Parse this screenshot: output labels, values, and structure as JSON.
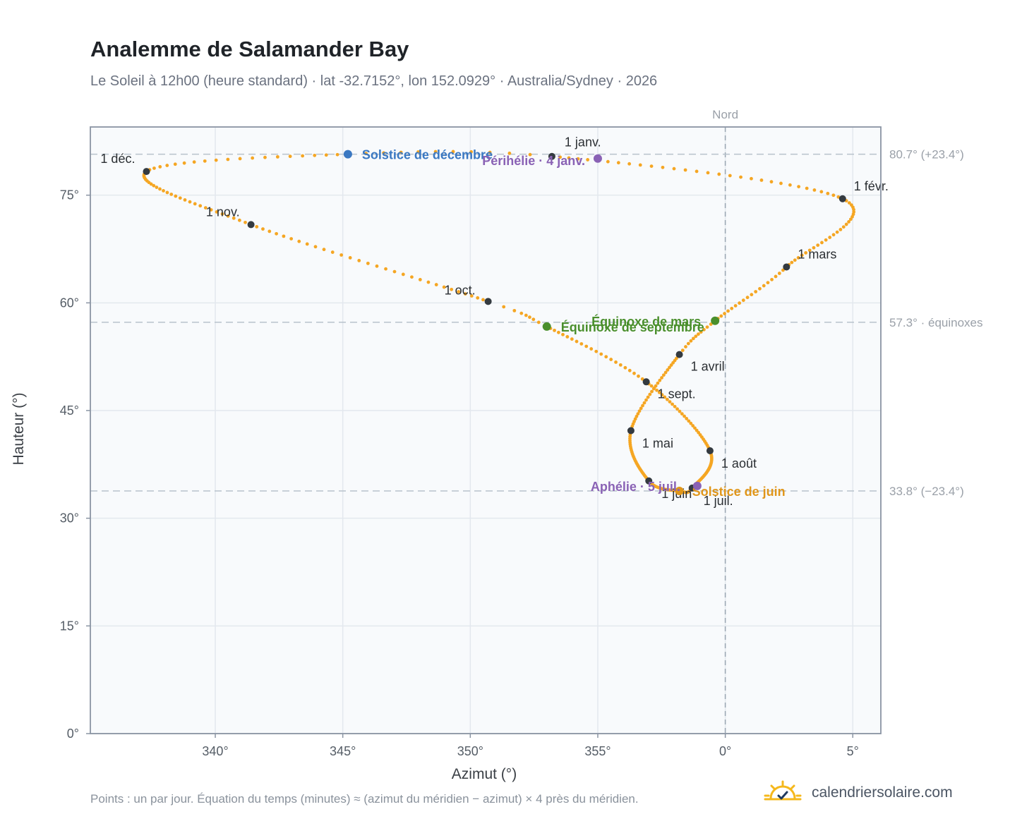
{
  "header": {
    "title": "Analemme de Salamander Bay",
    "subtitle": "Le Soleil à 12h00 (heure standard) · lat -32.7152°, lon 152.0929° · Australia/Sydney · 2026"
  },
  "footer": {
    "note": "Points : un par jour. Équation du temps (minutes) ≈ (azimut du méridien − azimut) × 4 près du méridien.",
    "brand": "calendriersolaire.com",
    "brand_icon": "sun-check-icon"
  },
  "colors": {
    "curve": "#f5a623",
    "month_marker": "#343a40",
    "solstice_december": "#3a78c2",
    "solstice_june": "#e0961a",
    "equinox": "#4a8f2c",
    "apsis": "#8a62b5",
    "reference_line": "#b8c2cc",
    "plot_background": "#f8fafc"
  },
  "chart_data": {
    "type": "scatter",
    "xlabel": "Azimut (°)",
    "ylabel": "Hauteur (°)",
    "x_ticks": [
      "340°",
      "345°",
      "350°",
      "355°",
      "0°",
      "5°"
    ],
    "y_ticks": [
      "0°",
      "15°",
      "30°",
      "45°",
      "60°",
      "75°"
    ],
    "x_note": "azimut relatif au nord (0° = Nord, 340° = −20°)",
    "xlim": [
      -24.9,
      6.1
    ],
    "ylim": [
      0,
      84.5
    ],
    "grid": true,
    "north_line": {
      "azimuth": 0,
      "label": "Nord"
    },
    "reference_lines": [
      {
        "altitude": 80.7,
        "label": "80.7° (+23.4°)"
      },
      {
        "altitude": 57.3,
        "label": "57.3° · équinoxes"
      },
      {
        "altitude": 33.8,
        "label": "33.8° (−23.4°)"
      }
    ],
    "series": [
      {
        "name": "",
        "points_note": "un point par jour",
        "anchors": [
          {
            "day": 1,
            "az": -6.8,
            "alt": 80.4
          },
          {
            "day": 32,
            "az": 4.6,
            "alt": 74.5
          },
          {
            "day": 60,
            "az": 2.4,
            "alt": 65.0
          },
          {
            "day": 79,
            "az": -0.4,
            "alt": 57.5
          },
          {
            "day": 91,
            "az": -1.8,
            "alt": 52.8
          },
          {
            "day": 121,
            "az": -3.7,
            "alt": 42.2
          },
          {
            "day": 152,
            "az": -3.0,
            "alt": 35.2
          },
          {
            "day": 172,
            "az": -1.8,
            "alt": 33.8
          },
          {
            "day": 182,
            "az": -1.3,
            "alt": 34.2
          },
          {
            "day": 213,
            "az": -0.6,
            "alt": 39.4
          },
          {
            "day": 244,
            "az": -3.1,
            "alt": 49.0
          },
          {
            "day": 266,
            "az": -7.0,
            "alt": 56.7
          },
          {
            "day": 274,
            "az": -9.3,
            "alt": 60.2
          },
          {
            "day": 305,
            "az": -18.6,
            "alt": 70.9
          },
          {
            "day": 335,
            "az": -22.7,
            "alt": 78.3
          },
          {
            "day": 355,
            "az": -14.8,
            "alt": 80.7
          },
          {
            "day": 366,
            "az": -6.8,
            "alt": 80.4
          }
        ]
      }
    ],
    "month_markers": [
      {
        "label": "1 janv.",
        "az": -6.8,
        "alt": 80.4
      },
      {
        "label": "1 févr.",
        "az": 4.6,
        "alt": 74.5
      },
      {
        "label": "1 mars",
        "az": 2.4,
        "alt": 65.0
      },
      {
        "label": "1 avril",
        "az": -1.8,
        "alt": 52.8
      },
      {
        "label": "1 mai",
        "az": -3.7,
        "alt": 42.2
      },
      {
        "label": "1 juin",
        "az": -3.0,
        "alt": 35.2
      },
      {
        "label": "1 juil.",
        "az": -1.3,
        "alt": 34.2
      },
      {
        "label": "1 août",
        "az": -0.6,
        "alt": 39.4
      },
      {
        "label": "1 sept.",
        "az": -3.1,
        "alt": 49.0
      },
      {
        "label": "1 oct.",
        "az": -9.3,
        "alt": 60.2
      },
      {
        "label": "1 nov.",
        "az": -18.6,
        "alt": 70.9
      },
      {
        "label": "1 déc.",
        "az": -22.7,
        "alt": 78.3
      }
    ],
    "events": [
      {
        "label": "Solstice de décembre",
        "az": -14.8,
        "alt": 80.7,
        "kind": "solstice_december"
      },
      {
        "label": "Périhélie · 4 janv.",
        "az": -5.0,
        "alt": 80.1,
        "kind": "apsis"
      },
      {
        "label": "Équinoxe de mars",
        "az": -0.4,
        "alt": 57.5,
        "kind": "equinox"
      },
      {
        "label": "Équinoxe de septembre",
        "az": -7.0,
        "alt": 56.7,
        "kind": "equinox"
      },
      {
        "label": "Solstice de juin",
        "az": -1.8,
        "alt": 33.8,
        "kind": "solstice_june"
      },
      {
        "label": "Aphélie · 5 juil.",
        "az": -1.1,
        "alt": 34.5,
        "kind": "apsis"
      }
    ]
  }
}
